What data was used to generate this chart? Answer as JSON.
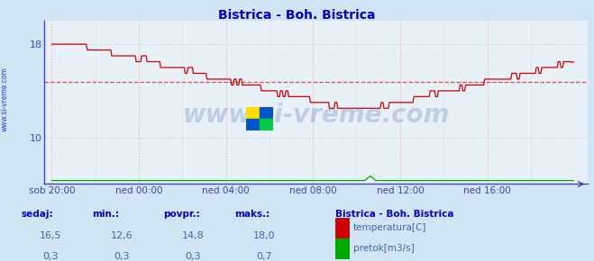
{
  "title": "Bistrica - Boh. Bistrica",
  "title_color": "#0000cc",
  "bg_color": "#d0e4f4",
  "plot_bg_color": "#e8f0f8",
  "grid_color_v": "#ffaaaa",
  "grid_color_h": "#c0d0e0",
  "axis_color": "#4444bb",
  "tick_color": "#4444aa",
  "watermark_text": "www.si-vreme.com",
  "watermark_color": "#5577bb",
  "watermark_alpha": 0.28,
  "temp_color": "#cc0000",
  "flow_color": "#00aa00",
  "avg_line_color": "#cc0000",
  "avg_value": 14.8,
  "ylim_temp": [
    6,
    20
  ],
  "ylim_flow": [
    0,
    14
  ],
  "yticks_temp": [
    10,
    18
  ],
  "x_tick_labels": [
    "sob 20:00",
    "ned 00:00",
    "ned 04:00",
    "ned 08:00",
    "ned 12:00",
    "ned 16:00"
  ],
  "x_tick_positions": [
    0,
    96,
    192,
    288,
    384,
    480
  ],
  "minor_x_positions": [
    48,
    144,
    240,
    336,
    432,
    528
  ],
  "total_points": 576,
  "sedaj_label": "sedaj:",
  "min_label": "min.:",
  "povpr_label": "povpr.:",
  "maks_label": "maks.:",
  "legend_title": "Bistrica - Boh. Bistrica",
  "temp_label": "temperatura[C]",
  "flow_label": "pretok[m3/s]",
  "temp_sedaj": "16,5",
  "temp_min": "12,6",
  "temp_povpr": "14,8",
  "temp_maks": "18,0",
  "flow_sedaj": "0,3",
  "flow_min": "0,3",
  "flow_povpr": "0,3",
  "flow_maks": "0,7",
  "info_text_color": "#0000cc",
  "info_value_color": "#4466aa"
}
